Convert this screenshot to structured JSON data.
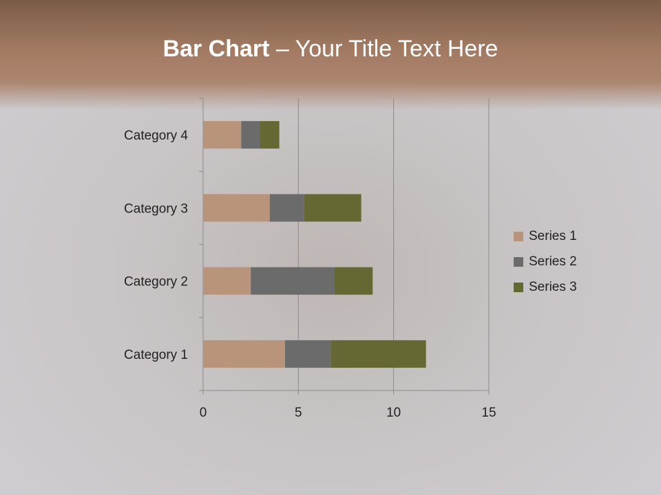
{
  "title": {
    "bold": "Bar Chart",
    "rest": " – Your Title Text Here"
  },
  "chart_data": {
    "type": "bar",
    "orientation": "horizontal",
    "stacked": true,
    "categories": [
      "Category 1",
      "Category 2",
      "Category 3",
      "Category 4"
    ],
    "series": [
      {
        "name": "Series 1",
        "color": "#b8947a",
        "values": [
          4.3,
          2.5,
          3.5,
          2.0
        ]
      },
      {
        "name": "Series 2",
        "color": "#6b6b6b",
        "values": [
          2.4,
          4.4,
          1.8,
          1.0
        ]
      },
      {
        "name": "Series 3",
        "color": "#666833",
        "values": [
          5.0,
          2.0,
          3.0,
          1.0
        ]
      }
    ],
    "xlim": [
      0,
      15
    ],
    "xticks": [
      0,
      5,
      10,
      15
    ],
    "grid": true,
    "legend": "right"
  }
}
